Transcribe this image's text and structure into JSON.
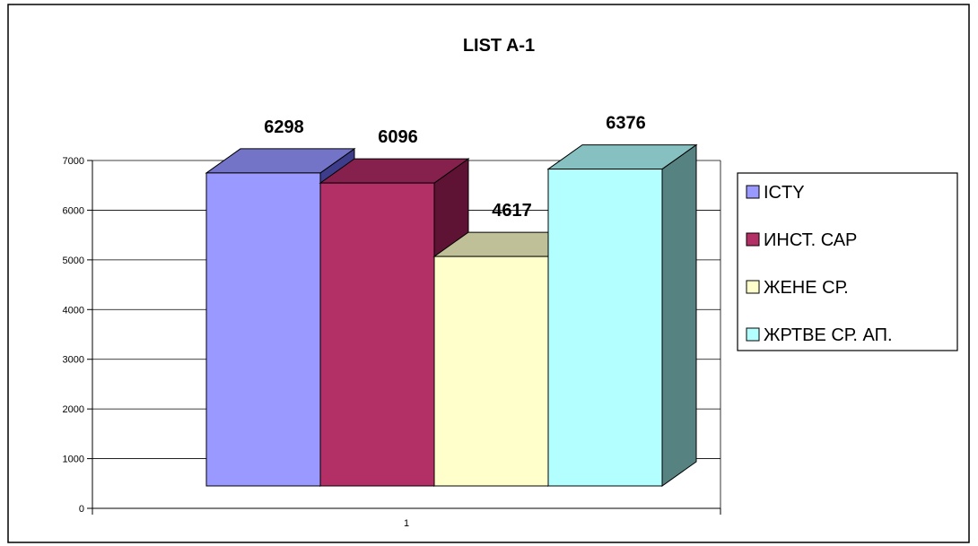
{
  "chart_data": {
    "type": "bar",
    "title": "LIST A-1",
    "categories": [
      "1"
    ],
    "series": [
      {
        "name": "ICTY",
        "values": [
          6298
        ],
        "color": "#9999ff",
        "top_color": "#7373c8",
        "side_color": "#3d3d8c"
      },
      {
        "name": "ИНСТ. САР",
        "values": [
          6096
        ],
        "color": "#b33066",
        "top_color": "#86204c",
        "side_color": "#5e1234"
      },
      {
        "name": "ЖЕНЕ СР.",
        "values": [
          4617
        ],
        "color": "#ffffcc",
        "top_color": "#c0c098",
        "side_color": "#8a8a6a"
      },
      {
        "name": "ЖРТВЕ СР. АП.",
        "values": [
          6376
        ],
        "color": "#b3ffff",
        "top_color": "#86c0c0",
        "side_color": "#578282"
      }
    ],
    "y_ticks": [
      0,
      1000,
      2000,
      3000,
      4000,
      5000,
      6000,
      7000
    ],
    "ylim": [
      0,
      7000
    ],
    "xlabel": "",
    "ylabel": "",
    "legend_position": "right",
    "grid": true
  }
}
